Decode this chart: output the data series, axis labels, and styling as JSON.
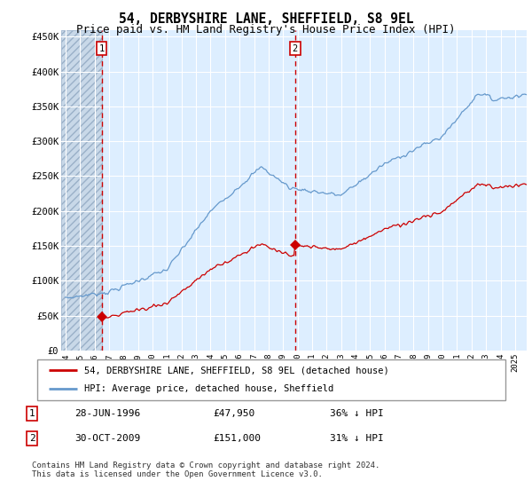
{
  "title": "54, DERBYSHIRE LANE, SHEFFIELD, S8 9EL",
  "subtitle": "Price paid vs. HM Land Registry's House Price Index (HPI)",
  "title_fontsize": 10.5,
  "subtitle_fontsize": 9,
  "background_color": "#ffffff",
  "plot_bg_color": "#ddeeff",
  "grid_color": "#ffffff",
  "sale1_date_year": 1996.49,
  "sale1_price": 47950,
  "sale2_date_year": 2009.83,
  "sale2_price": 151000,
  "red_line_color": "#cc0000",
  "blue_line_color": "#6699cc",
  "dashed_line_color": "#cc0000",
  "marker_color": "#cc0000",
  "ylim": [
    0,
    460000
  ],
  "xlim_start": 1993.7,
  "xlim_end": 2025.8,
  "yticks": [
    0,
    50000,
    100000,
    150000,
    200000,
    250000,
    300000,
    350000,
    400000,
    450000
  ],
  "ytick_labels": [
    "£0",
    "£50K",
    "£100K",
    "£150K",
    "£200K",
    "£250K",
    "£300K",
    "£350K",
    "£400K",
    "£450K"
  ],
  "xtick_years": [
    1994,
    1995,
    1996,
    1997,
    1998,
    1999,
    2000,
    2001,
    2002,
    2003,
    2004,
    2005,
    2006,
    2007,
    2008,
    2009,
    2010,
    2011,
    2012,
    2013,
    2014,
    2015,
    2016,
    2017,
    2018,
    2019,
    2020,
    2021,
    2022,
    2023,
    2024,
    2025
  ],
  "legend_line1": "54, DERBYSHIRE LANE, SHEFFIELD, S8 9EL (detached house)",
  "legend_line2": "HPI: Average price, detached house, Sheffield",
  "table_row1": [
    "1",
    "28-JUN-1996",
    "£47,950",
    "36% ↓ HPI"
  ],
  "table_row2": [
    "2",
    "30-OCT-2009",
    "£151,000",
    "31% ↓ HPI"
  ],
  "footnote": "Contains HM Land Registry data © Crown copyright and database right 2024.\nThis data is licensed under the Open Government Licence v3.0.",
  "footnote_fontsize": 6.5
}
